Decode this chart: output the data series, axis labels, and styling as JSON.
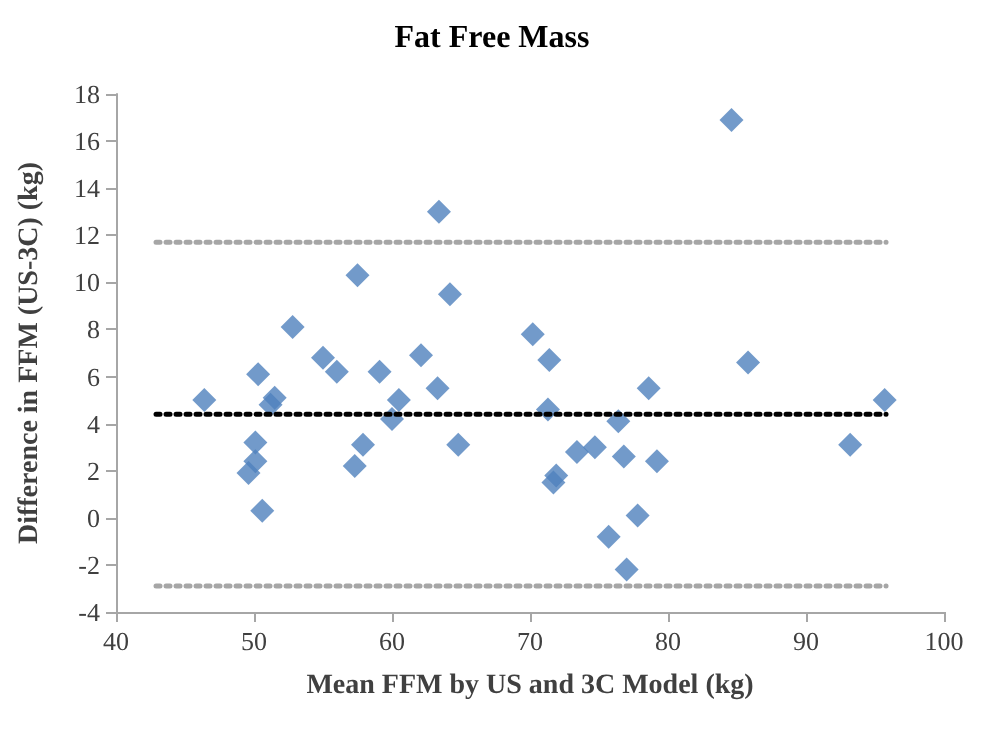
{
  "chart_data": {
    "type": "scatter",
    "title": "Fat Free Mass",
    "xlabel": "Mean FFM by US and 3C Model (kg)",
    "ylabel": "Difference in FFM (US-3C) (kg)",
    "xlim": [
      40,
      100
    ],
    "xticks": [
      40,
      50,
      60,
      70,
      80,
      90,
      100
    ],
    "ylim": [
      -4,
      18
    ],
    "yticks": [
      -4,
      -2,
      0,
      2,
      4,
      6,
      8,
      10,
      12,
      14,
      16,
      18
    ],
    "grid": false,
    "marker": "diamond",
    "series": [
      {
        "color": "#4f81bd",
        "x": [
          46.4,
          50.3,
          50.1,
          50.1,
          49.6,
          50.6,
          51.2,
          51.5,
          52.8,
          55.0,
          56.0,
          57.5,
          57.3,
          57.9,
          59.1,
          60.0,
          60.5,
          62.1,
          63.4,
          63.3,
          64.2,
          64.8,
          70.2,
          71.4,
          71.3,
          71.9,
          71.7,
          73.4,
          74.7,
          76.4,
          76.8,
          75.7,
          77.0,
          77.8,
          78.6,
          79.2,
          84.6,
          85.8,
          93.2,
          95.7
        ],
        "values": [
          5.0,
          6.1,
          3.2,
          2.4,
          1.9,
          0.3,
          4.8,
          5.1,
          8.1,
          6.8,
          6.2,
          10.3,
          2.2,
          3.1,
          6.2,
          4.2,
          5.0,
          6.9,
          13.0,
          5.5,
          9.5,
          3.1,
          7.8,
          6.7,
          4.6,
          1.8,
          1.5,
          2.8,
          3.0,
          4.1,
          2.6,
          -0.8,
          -2.2,
          0.1,
          5.5,
          2.4,
          16.9,
          6.6,
          3.1,
          5.0
        ]
      },
      {
        "type": "line",
        "color": "#a6a6a6",
        "line_style": "dotted",
        "marker": "none",
        "x": [
          42.9,
          95.8
        ],
        "values": [
          11.7,
          11.7
        ]
      },
      {
        "type": "line",
        "color": "#000000",
        "line_style": "dotted",
        "marker": "none",
        "x": [
          42.9,
          95.8
        ],
        "values": [
          4.4,
          4.4
        ]
      },
      {
        "type": "line",
        "color": "#a6a6a6",
        "line_style": "dotted",
        "marker": "none",
        "x": [
          42.9,
          95.8
        ],
        "values": [
          -2.9,
          -2.9
        ]
      }
    ]
  }
}
